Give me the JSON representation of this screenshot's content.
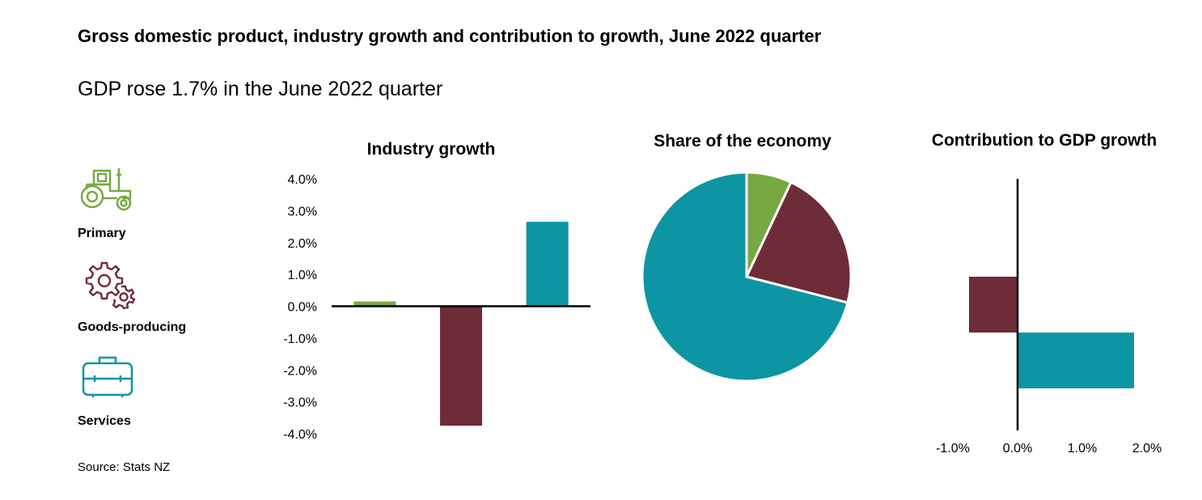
{
  "title": "Gross domestic product, industry growth and contribution to growth, June 2022 quarter",
  "subtitle": "GDP rose 1.7% in the June 2022 quarter",
  "source": "Source: Stats NZ",
  "legend": [
    {
      "label": "Primary",
      "icon": "tractor-icon",
      "color": "#78a842"
    },
    {
      "label": "Goods-producing",
      "icon": "gears-icon",
      "color": "#6e2c38"
    },
    {
      "label": "Services",
      "icon": "briefcase-icon",
      "color": "#0e95a3"
    }
  ],
  "chart_data": [
    {
      "type": "bar",
      "title": "Industry growth",
      "categories": [
        "Primary",
        "Goods-producing",
        "Services"
      ],
      "values": [
        0.15,
        -3.75,
        2.65
      ],
      "colors": [
        "#78a842",
        "#6e2c38",
        "#0e95a3"
      ],
      "ylim": [
        -4.0,
        4.0
      ],
      "yticks": [
        4.0,
        3.0,
        2.0,
        1.0,
        0.0,
        -1.0,
        -2.0,
        -3.0,
        -4.0
      ],
      "ytick_labels": [
        "4.0%",
        "3.0%",
        "2.0%",
        "1.0%",
        "0.0%",
        "-1.0%",
        "-2.0%",
        "-3.0%",
        "-4.0%"
      ]
    },
    {
      "type": "pie",
      "title": "Share of the economy",
      "categories": [
        "Primary",
        "Goods-producing",
        "Services"
      ],
      "values": [
        7,
        22,
        71
      ],
      "colors": [
        "#78a842",
        "#6e2c38",
        "#0e95a3"
      ]
    },
    {
      "type": "bar",
      "orientation": "horizontal",
      "title": "Contribution to GDP growth",
      "categories": [
        "Goods-producing",
        "Services"
      ],
      "values": [
        -0.75,
        1.8
      ],
      "colors": [
        "#6e2c38",
        "#0e95a3"
      ],
      "xlim": [
        -1.0,
        2.0
      ],
      "xticks": [
        -1.0,
        0.0,
        1.0,
        2.0
      ],
      "xtick_labels": [
        "-1.0%",
        "0.0%",
        "1.0%",
        "2.0%"
      ]
    }
  ]
}
